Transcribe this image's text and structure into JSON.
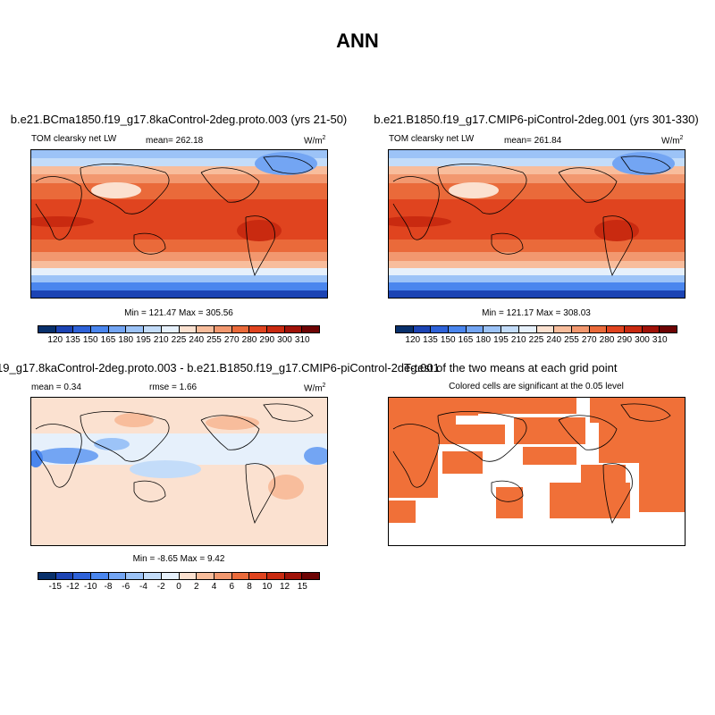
{
  "main_title": "ANN",
  "panels": {
    "top_left": {
      "title": "b.e21.BCma1850.f19_g17.8kaControl-2deg.proto.003 (yrs 21-50)",
      "left_label": "TOM clearsky net LW",
      "center_label": "mean= 262.18",
      "units": "W/m",
      "units_sup": "2",
      "minmax": "Min = 121.47 Max = 305.56",
      "colorbar": [
        "120",
        "135",
        "150",
        "165",
        "180",
        "195",
        "210",
        "225",
        "240",
        "255",
        "270",
        "280",
        "290",
        "300",
        "310"
      ]
    },
    "top_right": {
      "title": "b.e21.B1850.f19_g17.CMIP6-piControl-2deg.001 (yrs 301-330)",
      "left_label": "TOM clearsky net LW",
      "center_label": "mean= 261.84",
      "units": "W/m",
      "units_sup": "2",
      "minmax": "Min = 121.17 Max = 308.03",
      "colorbar": [
        "120",
        "135",
        "150",
        "165",
        "180",
        "195",
        "210",
        "225",
        "240",
        "255",
        "270",
        "280",
        "290",
        "300",
        "310"
      ]
    },
    "bottom_left": {
      "title": "19_g17.8kaControl-2deg.proto.003 - b.e21.B1850.f19_g17.CMIP6-piControl-2deg.001",
      "left_label": "mean =   0.34",
      "center_label": "rmse =   1.66",
      "units": "W/m",
      "units_sup": "2",
      "minmax": "Min =  -8.65 Max =   9.42",
      "colorbar": [
        "-15",
        "-12",
        "-10",
        "-8",
        "-6",
        "-4",
        "-2",
        "0",
        "2",
        "4",
        "6",
        "8",
        "10",
        "12",
        "15"
      ]
    },
    "bottom_right": {
      "title": "T-test of the two means at each grid point",
      "subtitle": "Colored cells are significant at the 0.05 level"
    }
  },
  "colors": {
    "abs_scale": [
      "#08306b",
      "#1c44b4",
      "#2e62d8",
      "#4a86ee",
      "#73a5f3",
      "#9cc3f7",
      "#c3dcf9",
      "#e6f0fb",
      "#fbe1d0",
      "#f8bd9c",
      "#f2986f",
      "#ea6a3a",
      "#e0441f",
      "#c92a10",
      "#a01208",
      "#6e0404"
    ],
    "diff_scale": [
      "#08306b",
      "#1c44b4",
      "#2e62d8",
      "#4a86ee",
      "#73a5f3",
      "#9cc3f7",
      "#c3dcf9",
      "#e6f0fb",
      "#fbe1d0",
      "#f8bd9c",
      "#f2986f",
      "#ea6a3a",
      "#e0441f",
      "#c92a10",
      "#a01208",
      "#6e0404"
    ],
    "significance": "#f07038"
  }
}
